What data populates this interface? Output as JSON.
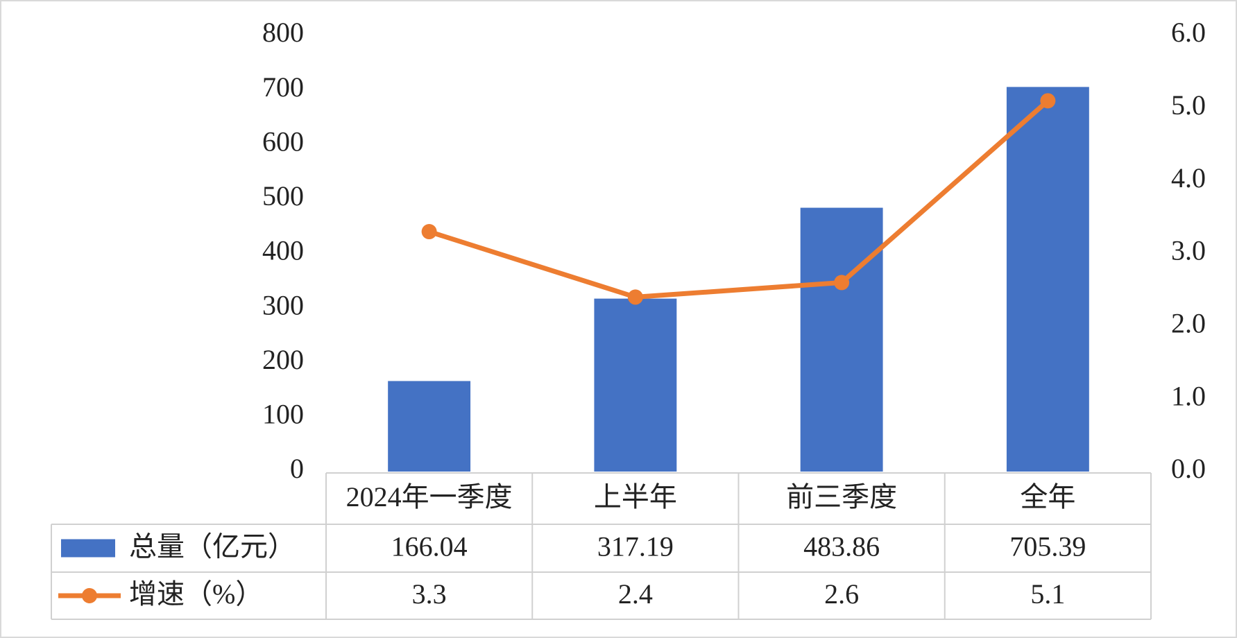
{
  "chart_data": {
    "type": "bar-line",
    "categories": [
      "2024年一季度",
      "上半年",
      "前三季度",
      "全年"
    ],
    "series": [
      {
        "name": "总量（亿元）",
        "type": "bar",
        "color": "#4472c4",
        "values": [
          166.04,
          317.19,
          483.86,
          705.39
        ]
      },
      {
        "name": "增速（%）",
        "type": "line",
        "color": "#ed7d31",
        "axis": "y2",
        "values": [
          3.3,
          2.4,
          2.6,
          5.1
        ]
      }
    ],
    "ylim": [
      0,
      800
    ],
    "yticks": [
      0,
      100,
      200,
      300,
      400,
      500,
      600,
      700,
      800
    ],
    "y2lim": [
      0,
      6
    ],
    "y2ticks": [
      {
        "value": 0,
        "label": "0.0"
      },
      {
        "value": 1,
        "label": "1.0"
      },
      {
        "value": 2,
        "label": "2.0"
      },
      {
        "value": 3,
        "label": "3.0"
      },
      {
        "value": 4,
        "label": "4.0"
      },
      {
        "value": 5,
        "label": "5.0"
      },
      {
        "value": 6,
        "label": "6.0"
      }
    ],
    "data_table": true
  }
}
